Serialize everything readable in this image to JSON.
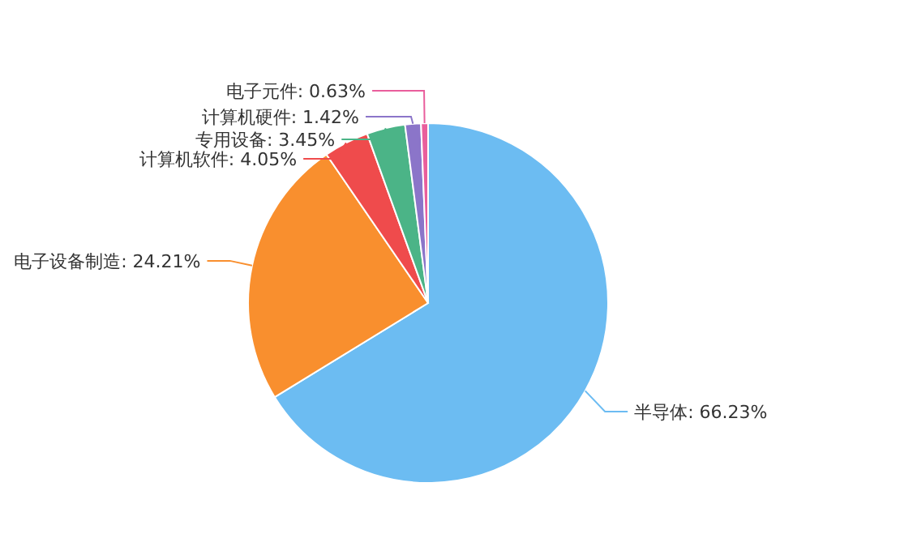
{
  "chart_data": {
    "type": "pie",
    "categories": [
      "半导体",
      "电子设备制造",
      "计算机软件",
      "专用设备",
      "计算机硬件",
      "电子元件"
    ],
    "values": [
      66.23,
      24.21,
      4.05,
      3.45,
      1.42,
      0.63
    ],
    "value_labels": [
      "66.23%",
      "24.21%",
      "4.05%",
      "3.45%",
      "1.42%",
      "0.63%"
    ],
    "colors": [
      "#6cbcf2",
      "#f98f2e",
      "#ef4b4c",
      "#4bb487",
      "#8b75c9",
      "#e95e9c"
    ]
  }
}
